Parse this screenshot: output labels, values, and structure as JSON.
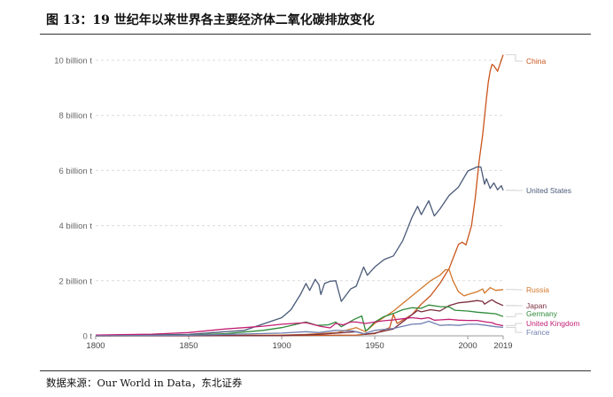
{
  "figure": {
    "title": "图 13：19 世纪年以来世界各主要经济体二氧化碳排放变化",
    "source": "数据来源：Our World in Data，东北证券"
  },
  "chart_data": {
    "type": "line",
    "title": "",
    "xlabel": "",
    "ylabel": "",
    "xlim": [
      1800,
      2019
    ],
    "ylim": [
      0,
      10
    ],
    "x_ticks": [
      {
        "value": 1800,
        "label": "1800"
      },
      {
        "value": 1850,
        "label": "1850"
      },
      {
        "value": 1900,
        "label": "1900"
      },
      {
        "value": 1950,
        "label": "1950"
      },
      {
        "value": 2000,
        "label": "2000"
      },
      {
        "value": 2019,
        "label": "2019"
      }
    ],
    "y_ticks": [
      {
        "value": 0,
        "label": "0 t"
      },
      {
        "value": 2,
        "label": "2 billion t"
      },
      {
        "value": 4,
        "label": "4 billion t"
      },
      {
        "value": 6,
        "label": "6 billion t"
      },
      {
        "value": 8,
        "label": "8 billion t"
      },
      {
        "value": 10,
        "label": "10 billion t"
      }
    ],
    "grid": true,
    "legend": "right, labels at line ends",
    "series": [
      {
        "name": "China",
        "color": "#c9551c",
        "points": [
          [
            1800,
            0
          ],
          [
            1900,
            0.01
          ],
          [
            1940,
            0.03
          ],
          [
            1950,
            0.08
          ],
          [
            1958,
            0.3
          ],
          [
            1960,
            0.78
          ],
          [
            1962,
            0.45
          ],
          [
            1970,
            0.77
          ],
          [
            1975,
            1.15
          ],
          [
            1980,
            1.46
          ],
          [
            1985,
            1.9
          ],
          [
            1990,
            2.45
          ],
          [
            1995,
            3.32
          ],
          [
            1997,
            3.4
          ],
          [
            1999,
            3.3
          ],
          [
            2002,
            4.0
          ],
          [
            2004,
            5.0
          ],
          [
            2006,
            6.3
          ],
          [
            2008,
            7.3
          ],
          [
            2010,
            8.6
          ],
          [
            2011,
            9.2
          ],
          [
            2012,
            9.6
          ],
          [
            2013,
            9.85
          ],
          [
            2014,
            9.8
          ],
          [
            2016,
            9.6
          ],
          [
            2018,
            10.0
          ],
          [
            2019,
            10.2
          ]
        ]
      },
      {
        "name": "United States",
        "color": "#4a5a78",
        "points": [
          [
            1800,
            0.01
          ],
          [
            1850,
            0.05
          ],
          [
            1880,
            0.2
          ],
          [
            1900,
            0.66
          ],
          [
            1905,
            0.95
          ],
          [
            1910,
            1.5
          ],
          [
            1913,
            1.9
          ],
          [
            1915,
            1.65
          ],
          [
            1918,
            2.05
          ],
          [
            1920,
            1.85
          ],
          [
            1921,
            1.5
          ],
          [
            1923,
            1.9
          ],
          [
            1926,
            1.98
          ],
          [
            1929,
            2.0
          ],
          [
            1932,
            1.25
          ],
          [
            1937,
            1.7
          ],
          [
            1940,
            1.8
          ],
          [
            1944,
            2.5
          ],
          [
            1946,
            2.2
          ],
          [
            1950,
            2.5
          ],
          [
            1955,
            2.77
          ],
          [
            1960,
            2.9
          ],
          [
            1965,
            3.45
          ],
          [
            1970,
            4.3
          ],
          [
            1973,
            4.7
          ],
          [
            1975,
            4.4
          ],
          [
            1979,
            4.9
          ],
          [
            1982,
            4.35
          ],
          [
            1985,
            4.6
          ],
          [
            1990,
            5.1
          ],
          [
            1995,
            5.4
          ],
          [
            2000,
            5.98
          ],
          [
            2005,
            6.13
          ],
          [
            2007,
            6.13
          ],
          [
            2009,
            5.5
          ],
          [
            2010,
            5.7
          ],
          [
            2012,
            5.35
          ],
          [
            2014,
            5.55
          ],
          [
            2016,
            5.3
          ],
          [
            2018,
            5.45
          ],
          [
            2019,
            5.28
          ]
        ]
      },
      {
        "name": "Russia",
        "color": "#d2772b",
        "points": [
          [
            1800,
            0
          ],
          [
            1900,
            0.03
          ],
          [
            1913,
            0.05
          ],
          [
            1930,
            0.12
          ],
          [
            1940,
            0.3
          ],
          [
            1945,
            0.15
          ],
          [
            1950,
            0.45
          ],
          [
            1960,
            0.9
          ],
          [
            1970,
            1.45
          ],
          [
            1980,
            2.0
          ],
          [
            1985,
            2.2
          ],
          [
            1988,
            2.4
          ],
          [
            1990,
            2.4
          ],
          [
            1992,
            2.0
          ],
          [
            1995,
            1.6
          ],
          [
            1998,
            1.45
          ],
          [
            2000,
            1.5
          ],
          [
            2005,
            1.6
          ],
          [
            2008,
            1.7
          ],
          [
            2009,
            1.55
          ],
          [
            2012,
            1.75
          ],
          [
            2015,
            1.65
          ],
          [
            2019,
            1.68
          ]
        ]
      },
      {
        "name": "Japan",
        "color": "#7b2e3e",
        "points": [
          [
            1800,
            0
          ],
          [
            1900,
            0.01
          ],
          [
            1920,
            0.05
          ],
          [
            1940,
            0.15
          ],
          [
            1945,
            0.06
          ],
          [
            1950,
            0.1
          ],
          [
            1960,
            0.25
          ],
          [
            1970,
            0.77
          ],
          [
            1973,
            0.92
          ],
          [
            1975,
            0.87
          ],
          [
            1980,
            0.95
          ],
          [
            1985,
            0.9
          ],
          [
            1990,
            1.1
          ],
          [
            1995,
            1.2
          ],
          [
            2000,
            1.23
          ],
          [
            2005,
            1.28
          ],
          [
            2008,
            1.25
          ],
          [
            2009,
            1.15
          ],
          [
            2012,
            1.28
          ],
          [
            2013,
            1.31
          ],
          [
            2015,
            1.22
          ],
          [
            2019,
            1.1
          ]
        ]
      },
      {
        "name": "Germany",
        "color": "#2e8b3a",
        "points": [
          [
            1800,
            0
          ],
          [
            1850,
            0.03
          ],
          [
            1870,
            0.08
          ],
          [
            1890,
            0.2
          ],
          [
            1900,
            0.3
          ],
          [
            1913,
            0.5
          ],
          [
            1919,
            0.38
          ],
          [
            1925,
            0.4
          ],
          [
            1929,
            0.5
          ],
          [
            1932,
            0.33
          ],
          [
            1939,
            0.6
          ],
          [
            1943,
            0.72
          ],
          [
            1945,
            0.2
          ],
          [
            1946,
            0.22
          ],
          [
            1950,
            0.5
          ],
          [
            1955,
            0.7
          ],
          [
            1960,
            0.81
          ],
          [
            1965,
            0.95
          ],
          [
            1970,
            1.02
          ],
          [
            1975,
            1.0
          ],
          [
            1979,
            1.12
          ],
          [
            1985,
            1.06
          ],
          [
            1990,
            1.05
          ],
          [
            1993,
            0.93
          ],
          [
            2000,
            0.9
          ],
          [
            2005,
            0.86
          ],
          [
            2010,
            0.83
          ],
          [
            2015,
            0.8
          ],
          [
            2019,
            0.7
          ]
        ]
      },
      {
        "name": "United Kingdom",
        "color": "#c21f73",
        "points": [
          [
            1800,
            0.03
          ],
          [
            1830,
            0.06
          ],
          [
            1850,
            0.12
          ],
          [
            1870,
            0.25
          ],
          [
            1880,
            0.3
          ],
          [
            1890,
            0.35
          ],
          [
            1900,
            0.42
          ],
          [
            1913,
            0.48
          ],
          [
            1921,
            0.34
          ],
          [
            1926,
            0.29
          ],
          [
            1929,
            0.45
          ],
          [
            1933,
            0.4
          ],
          [
            1937,
            0.5
          ],
          [
            1940,
            0.5
          ],
          [
            1945,
            0.45
          ],
          [
            1950,
            0.5
          ],
          [
            1955,
            0.55
          ],
          [
            1960,
            0.58
          ],
          [
            1965,
            0.62
          ],
          [
            1970,
            0.66
          ],
          [
            1975,
            0.62
          ],
          [
            1979,
            0.66
          ],
          [
            1982,
            0.57
          ],
          [
            1985,
            0.58
          ],
          [
            1990,
            0.6
          ],
          [
            1995,
            0.57
          ],
          [
            2000,
            0.56
          ],
          [
            2005,
            0.56
          ],
          [
            2010,
            0.5
          ],
          [
            2013,
            0.48
          ],
          [
            2015,
            0.42
          ],
          [
            2019,
            0.37
          ]
        ]
      },
      {
        "name": "France",
        "color": "#6f7fb0",
        "points": [
          [
            1800,
            0
          ],
          [
            1850,
            0.02
          ],
          [
            1900,
            0.1
          ],
          [
            1913,
            0.15
          ],
          [
            1920,
            0.12
          ],
          [
            1929,
            0.2
          ],
          [
            1938,
            0.18
          ],
          [
            1944,
            0.07
          ],
          [
            1950,
            0.2
          ],
          [
            1960,
            0.27
          ],
          [
            1970,
            0.42
          ],
          [
            1975,
            0.44
          ],
          [
            1979,
            0.53
          ],
          [
            1985,
            0.38
          ],
          [
            1990,
            0.4
          ],
          [
            1995,
            0.38
          ],
          [
            2000,
            0.42
          ],
          [
            2005,
            0.42
          ],
          [
            2010,
            0.38
          ],
          [
            2015,
            0.33
          ],
          [
            2019,
            0.31
          ]
        ]
      }
    ]
  }
}
